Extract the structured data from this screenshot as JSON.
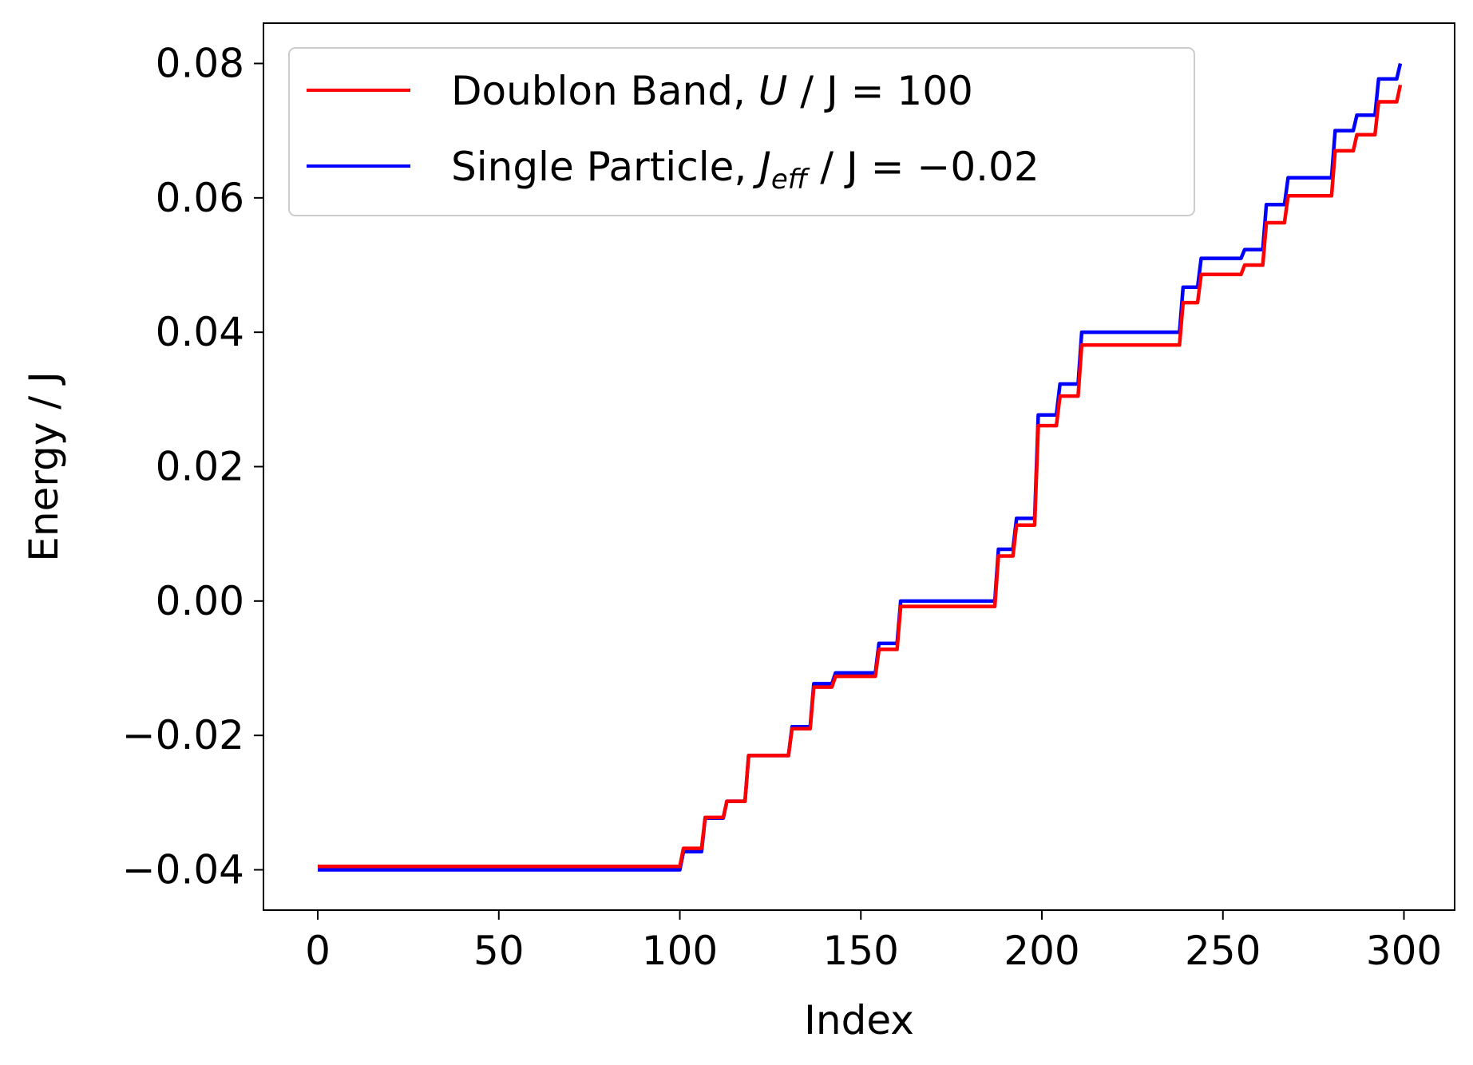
{
  "chart_data": {
    "type": "line",
    "title": "",
    "xlabel": "Index",
    "ylabel": "Energy / J",
    "xlim": [
      -15,
      314
    ],
    "ylim": [
      -0.046,
      0.086
    ],
    "xticks": [
      "0",
      "50",
      "100",
      "150",
      "200",
      "250",
      "300"
    ],
    "yticks": [
      "−0.04",
      "−0.02",
      "0.00",
      "0.02",
      "0.04",
      "0.06",
      "0.08"
    ],
    "grid": false,
    "legend_position": "upper left",
    "legend": {
      "doublon": {
        "label": "Doublon Band, ",
        "math_var": "U",
        "math_rest": " / J = 100"
      },
      "single": {
        "label": "Single Particle, ",
        "math_var": "J",
        "math_sub": "eff",
        "math_rest": " / J = −0.02"
      }
    },
    "series": [
      {
        "name": "Doublon Band, U / J = 100",
        "color": "#ff0000",
        "x": [
          0,
          100,
          101,
          106,
          107,
          112,
          113,
          118,
          119,
          130,
          131,
          136,
          137,
          142,
          143,
          154,
          155,
          160,
          161,
          187,
          188,
          192,
          193,
          198,
          199,
          204,
          205,
          210,
          211,
          238,
          239,
          243,
          244,
          255,
          256,
          261,
          262,
          267,
          268,
          280,
          281,
          286,
          287,
          292,
          293,
          298,
          299
        ],
        "y": [
          -0.0395,
          -0.0395,
          -0.0368,
          -0.0368,
          -0.0322,
          -0.0322,
          -0.0298,
          -0.0298,
          -0.023,
          -0.023,
          -0.019,
          -0.019,
          -0.0128,
          -0.0128,
          -0.0112,
          -0.0112,
          -0.0072,
          -0.0072,
          -0.0008,
          -0.0008,
          0.0067,
          0.0067,
          0.0113,
          0.0113,
          0.0261,
          0.0261,
          0.0305,
          0.0305,
          0.0381,
          0.0381,
          0.0444,
          0.0444,
          0.0486,
          0.0486,
          0.05,
          0.05,
          0.0563,
          0.0563,
          0.0603,
          0.0603,
          0.067,
          0.067,
          0.0694,
          0.0694,
          0.0743,
          0.0743,
          0.0768
        ]
      },
      {
        "name": "Single Particle, J_eff / J = −0.02",
        "color": "#0000ff",
        "x": [
          0,
          100,
          101,
          106,
          107,
          112,
          113,
          118,
          119,
          130,
          131,
          136,
          137,
          142,
          143,
          154,
          155,
          160,
          161,
          187,
          188,
          192,
          193,
          198,
          199,
          204,
          205,
          210,
          211,
          238,
          239,
          243,
          244,
          255,
          256,
          261,
          262,
          267,
          268,
          280,
          281,
          286,
          287,
          292,
          293,
          298,
          299
        ],
        "y": [
          -0.04,
          -0.04,
          -0.0373,
          -0.0373,
          -0.0323,
          -0.0323,
          -0.0298,
          -0.0298,
          -0.023,
          -0.023,
          -0.0187,
          -0.0187,
          -0.0123,
          -0.0123,
          -0.0107,
          -0.0107,
          -0.0063,
          -0.0063,
          0.0,
          0.0,
          0.0077,
          0.0077,
          0.0123,
          0.0123,
          0.0277,
          0.0277,
          0.0323,
          0.0323,
          0.04,
          0.04,
          0.0467,
          0.0467,
          0.051,
          0.051,
          0.0523,
          0.0523,
          0.059,
          0.059,
          0.063,
          0.063,
          0.07,
          0.07,
          0.0723,
          0.0723,
          0.0777,
          0.0777,
          0.08
        ]
      }
    ]
  }
}
